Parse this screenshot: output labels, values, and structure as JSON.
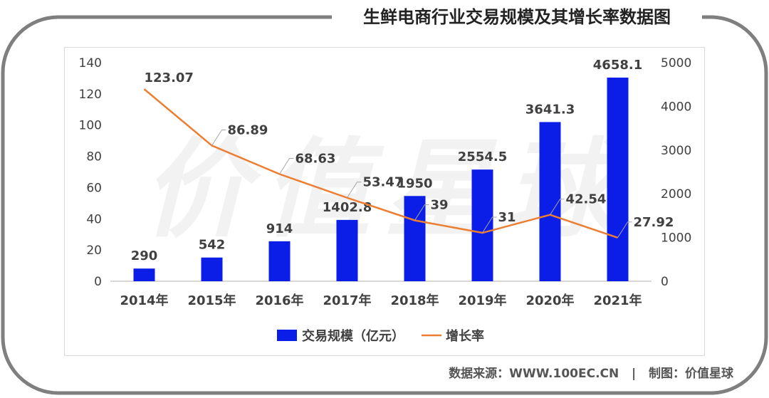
{
  "title": "生鲜电商行业交易规模及其增长率数据图",
  "watermark": "价值星球",
  "footer": {
    "source": "数据来源：WWW.100EC.CN",
    "separator": "|",
    "maker": "制图：价值星球"
  },
  "colors": {
    "bar": "#0a1ee8",
    "line": "#ed7d31",
    "text": "#404040",
    "frame": "#7f7f7f",
    "axis": "#bfbfbf"
  },
  "chart_data": {
    "type": "bar",
    "categories": [
      "2014年",
      "2015年",
      "2016年",
      "2017年",
      "2018年",
      "2019年",
      "2020年",
      "2021年"
    ],
    "series": [
      {
        "name": "交易规模（亿元）",
        "type": "bar",
        "axis": "right",
        "values": [
          290,
          542,
          914,
          1402.8,
          1950,
          2554.5,
          3641.3,
          4658.1
        ],
        "labels": [
          "290",
          "542",
          "914",
          "1402.8",
          "1950",
          "2554.5",
          "3641.3",
          "4658.1"
        ]
      },
      {
        "name": "增长率",
        "type": "line",
        "axis": "left",
        "values": [
          123.07,
          86.89,
          68.63,
          53.47,
          39,
          31,
          42.54,
          27.92
        ],
        "labels": [
          "123.07",
          "86.89",
          "68.63",
          "53.47",
          "39",
          "31",
          "42.54",
          "27.92"
        ]
      }
    ],
    "y_left": {
      "ylim": [
        0,
        140
      ],
      "ticks": [
        "0",
        "20",
        "40",
        "60",
        "80",
        "100",
        "120",
        "140"
      ]
    },
    "y_right": {
      "ylim": [
        0,
        5000
      ],
      "ticks": [
        "0",
        "1000",
        "2000",
        "3000",
        "4000",
        "5000"
      ]
    },
    "legend": "bottom-center",
    "grid": false
  }
}
